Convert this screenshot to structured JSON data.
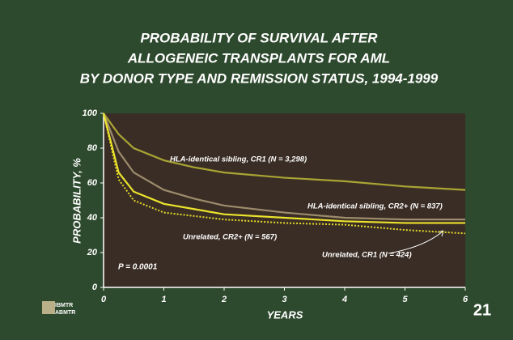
{
  "chart_data": {
    "type": "line",
    "title": [
      "PROBABILITY OF SURVIVAL AFTER",
      "ALLOGENEIC TRANSPLANTS FOR AML",
      "BY DONOR TYPE AND REMISSION STATUS, 1994-1999"
    ],
    "x_label": "YEARS",
    "y_label": "PROBABILITY, %",
    "x": [
      0,
      0.25,
      0.5,
      1,
      1.5,
      2,
      3,
      4,
      5,
      6
    ],
    "series": [
      {
        "name": "HLA-identical sibling, CR1 (N = 3,298)",
        "color": "#a9a534",
        "dash": false,
        "values": [
          100,
          88,
          80,
          73,
          69,
          66,
          63,
          61,
          58,
          56
        ]
      },
      {
        "name": "HLA-identical sibling, CR2+ (N = 837)",
        "color": "#9c8c6c",
        "dash": false,
        "values": [
          100,
          78,
          66,
          56,
          51,
          47,
          43,
          40,
          39,
          39
        ]
      },
      {
        "name": "Unrelated, CR2+ (N = 567)",
        "color": "#e4dc2a",
        "dash": true,
        "values": [
          100,
          62,
          50,
          43,
          41,
          39,
          37,
          36,
          33,
          31
        ]
      },
      {
        "name": "Unrelated, CR1 (N = 424)",
        "color": "#ece42c",
        "dash": false,
        "values": [
          100,
          66,
          55,
          48,
          45,
          42,
          40,
          38,
          37,
          37
        ]
      }
    ],
    "xlim": [
      0,
      6
    ],
    "xticks": [
      0,
      1,
      2,
      3,
      4,
      5,
      6
    ],
    "ylim": [
      0,
      100
    ],
    "yticks": [
      0,
      20,
      40,
      60,
      80,
      100
    ],
    "grid": false,
    "annotation": "P = 0.0001",
    "page_number": "21",
    "logo": [
      "IBMTR",
      "ABMTR"
    ]
  }
}
